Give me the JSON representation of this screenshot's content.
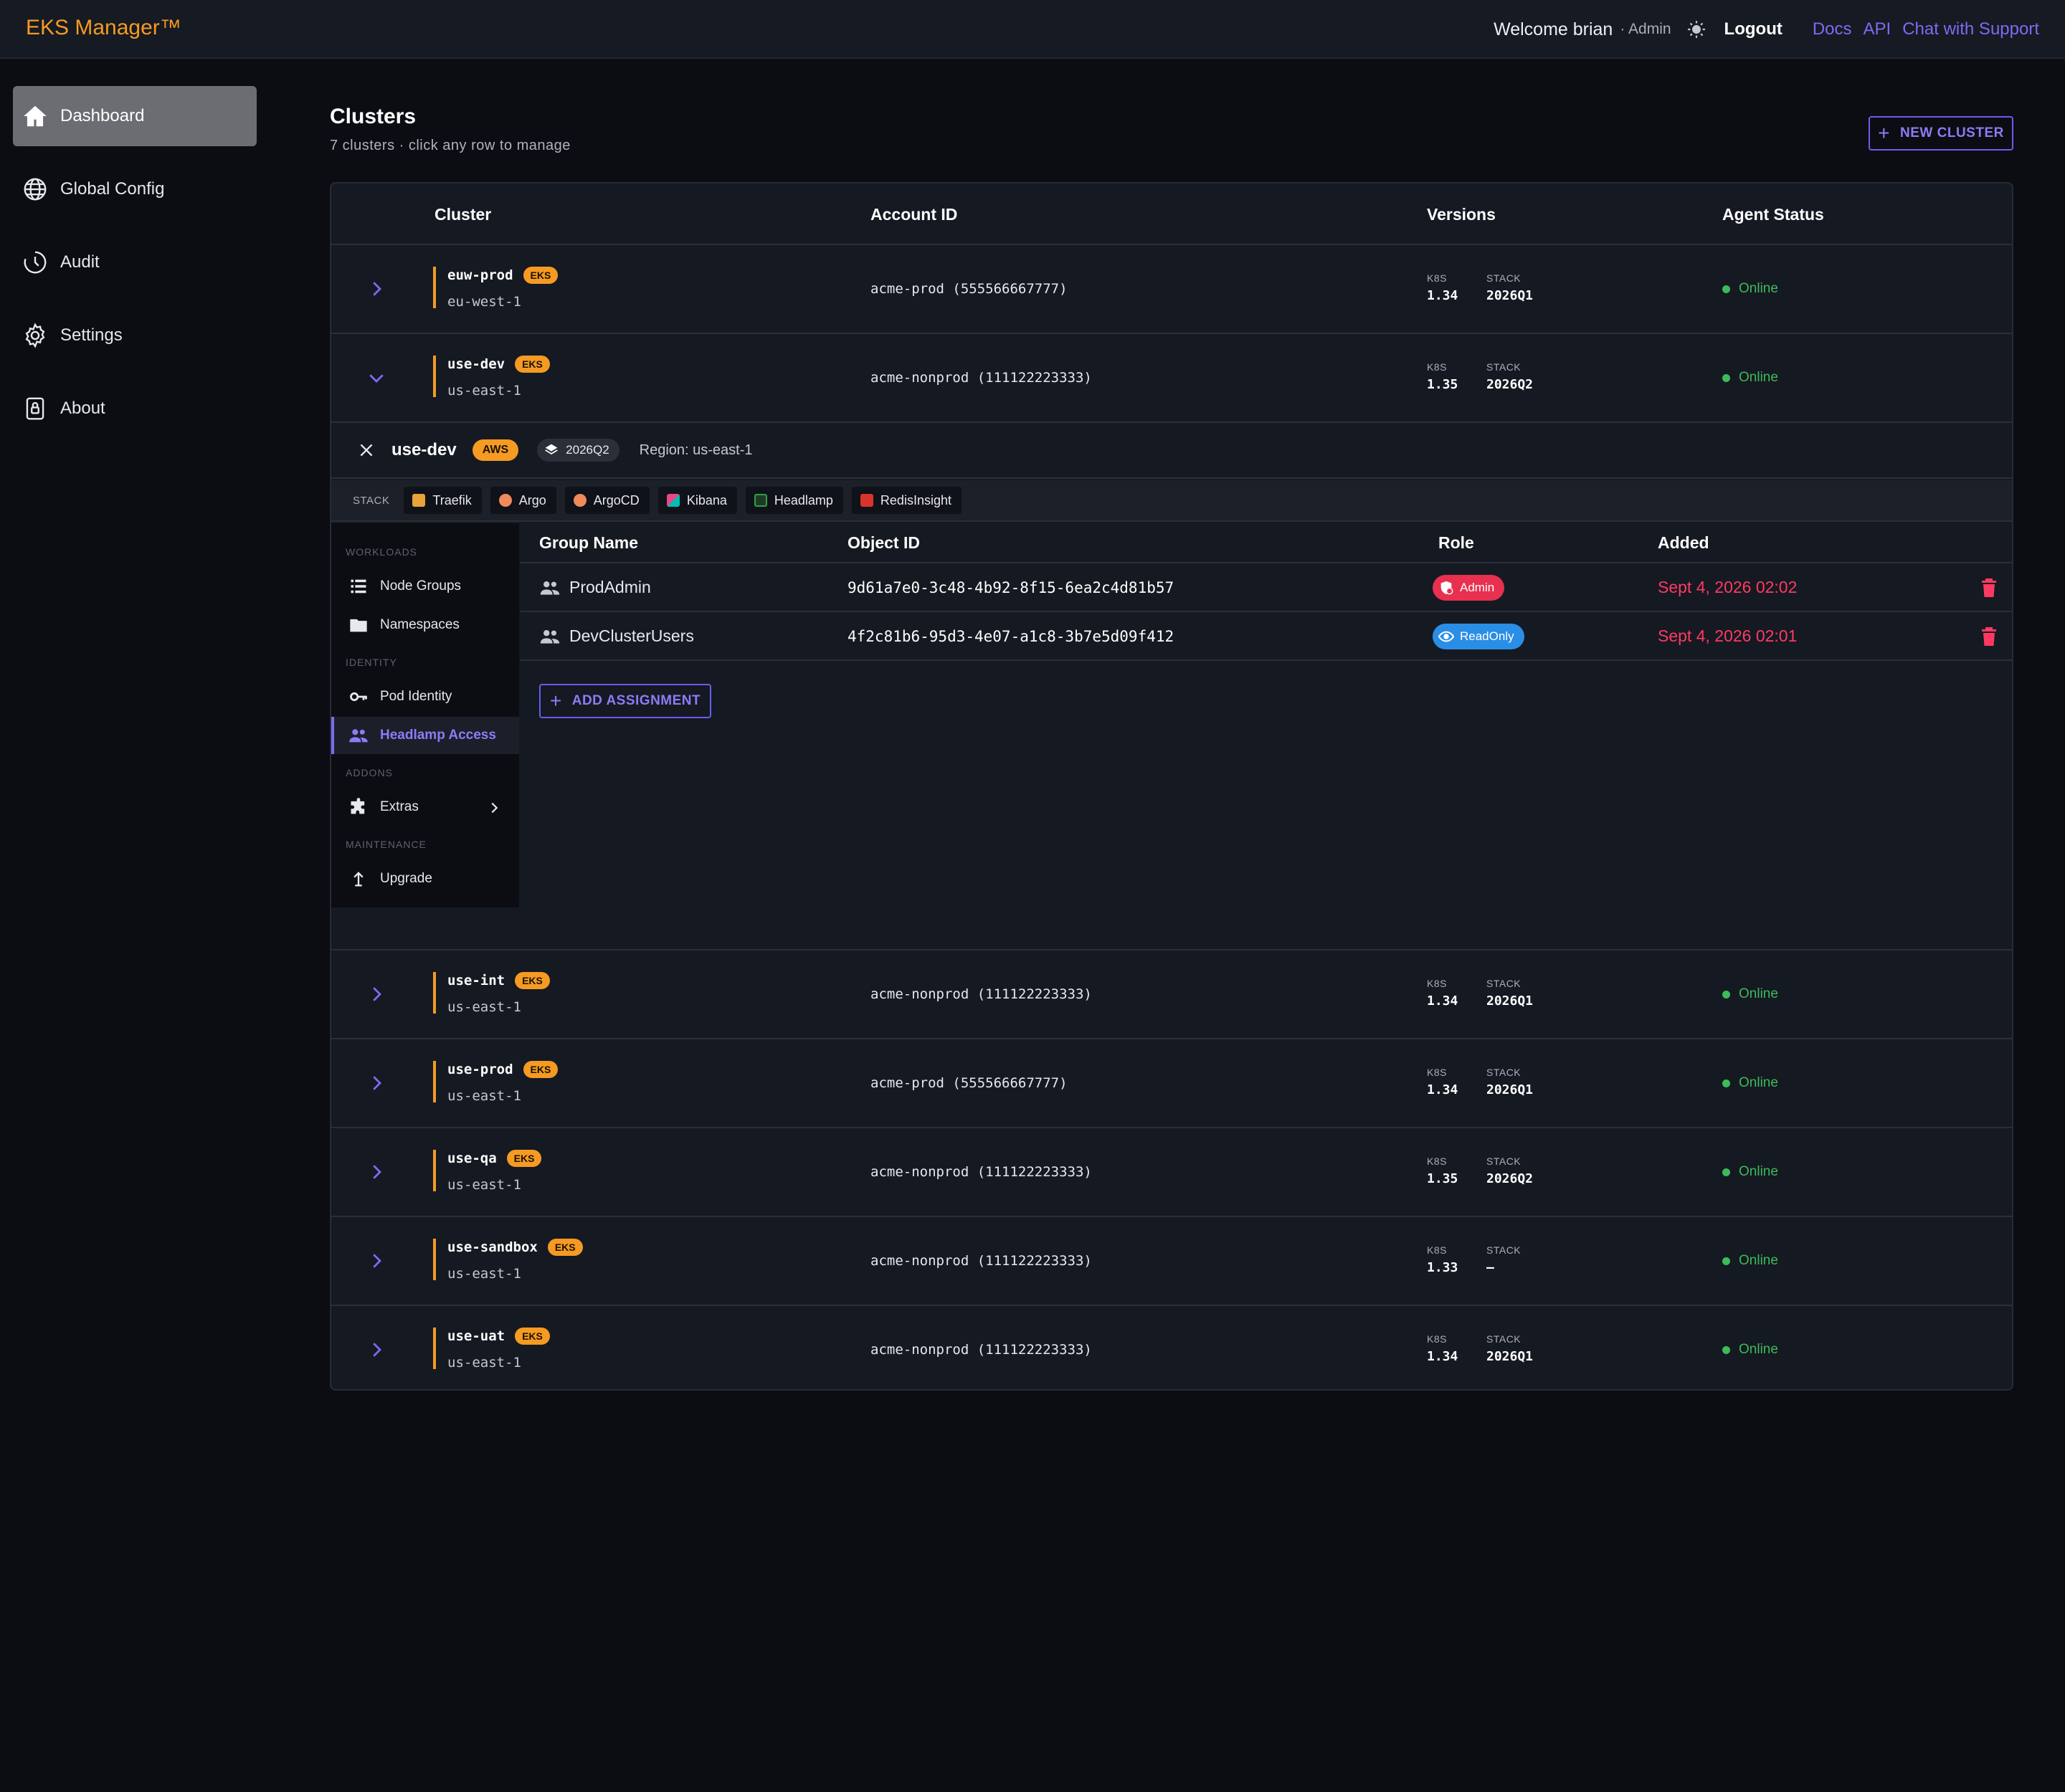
{
  "header": {
    "brand": "EKS Manager™",
    "welcome": "Welcome brian",
    "role": "· Admin",
    "logout": "Logout",
    "links": [
      "Docs",
      "API",
      "Chat with Support"
    ],
    "theme_icon": "sun-icon"
  },
  "sidebar": {
    "items": [
      {
        "label": "Dashboard",
        "icon": "home-icon",
        "active": true
      },
      {
        "label": "Global Config",
        "icon": "globe-icon"
      },
      {
        "label": "Audit",
        "icon": "clock-icon"
      },
      {
        "label": "Settings",
        "icon": "gear-icon"
      },
      {
        "label": "About",
        "icon": "lock-icon"
      }
    ]
  },
  "page": {
    "title": "Clusters",
    "subtitle": "7 clusters · click any row to manage",
    "new_cluster": "NEW CLUSTER"
  },
  "table": {
    "headers": [
      "Cluster",
      "Account ID",
      "Versions",
      "Agent Status"
    ],
    "version_labels": {
      "k8s": "K8S",
      "stack": "STACK"
    },
    "rows": [
      {
        "name": "euw-prod",
        "badge": "EKS",
        "region": "eu-west-1",
        "account": "acme-prod (555566667777)",
        "k8s": "1.34",
        "stack": "2026Q1",
        "status": "Online"
      },
      {
        "name": "use-dev",
        "badge": "EKS",
        "region": "us-east-1",
        "account": "acme-nonprod (111122223333)",
        "k8s": "1.35",
        "stack": "2026Q2",
        "status": "Online"
      },
      {
        "name": "use-int",
        "badge": "EKS",
        "region": "us-east-1",
        "account": "acme-nonprod (111122223333)",
        "k8s": "1.34",
        "stack": "2026Q1",
        "status": "Online"
      },
      {
        "name": "use-prod",
        "badge": "EKS",
        "region": "us-east-1",
        "account": "acme-prod (555566667777)",
        "k8s": "1.34",
        "stack": "2026Q1",
        "status": "Online"
      },
      {
        "name": "use-qa",
        "badge": "EKS",
        "region": "us-east-1",
        "account": "acme-nonprod (111122223333)",
        "k8s": "1.35",
        "stack": "2026Q2",
        "status": "Online"
      },
      {
        "name": "use-sandbox",
        "badge": "EKS",
        "region": "us-east-1",
        "account": "acme-nonprod (111122223333)",
        "k8s": "1.33",
        "stack": "–",
        "status": "Online"
      },
      {
        "name": "use-uat",
        "badge": "EKS",
        "region": "us-east-1",
        "account": "acme-nonprod (111122223333)",
        "k8s": "1.34",
        "stack": "2026Q1",
        "status": "Online"
      }
    ]
  },
  "panel": {
    "cluster": "use-dev",
    "provider": "AWS",
    "stack_version": "2026Q2",
    "region": "Region: us-east-1",
    "stack_label": "STACK",
    "stack_chips": [
      {
        "label": "Traefik",
        "color": "#e8a33a"
      },
      {
        "label": "Argo",
        "color": "#f08a5d"
      },
      {
        "label": "ArgoCD",
        "color": "#f08a5d"
      },
      {
        "label": "Kibana",
        "color": "#e8478b"
      },
      {
        "label": "Headlamp",
        "color": "#2ea04a"
      },
      {
        "label": "RedisInsight",
        "color": "#d8342c"
      }
    ],
    "side_sections": {
      "workloads": "WORKLOADS",
      "identity": "IDENTITY",
      "addons": "ADDONS",
      "maintenance": "MAINTENANCE"
    },
    "side_items": {
      "node_groups": "Node Groups",
      "namespaces": "Namespaces",
      "pod_identity": "Pod Identity",
      "headlamp_access": "Headlamp Access",
      "extras": "Extras",
      "upgrade": "Upgrade"
    },
    "grid_headers": [
      "Group Name",
      "Object ID",
      "Role",
      "Added"
    ],
    "assignments": [
      {
        "group": "ProdAdmin",
        "object_id": "9d61a7e0-3c48-4b92-8f15-6ea2c4d81b57",
        "role": "Admin",
        "role_color": "#e8304f",
        "added": "Sept 4, 2026 02:02"
      },
      {
        "group": "DevClusterUsers",
        "object_id": "4f2c81b6-95d3-4e07-a1c8-3b7e5d09f412",
        "role": "ReadOnly",
        "role_color": "#2a8ee6",
        "added": "Sept 4, 2026 02:01"
      }
    ],
    "add_assignment": "ADD ASSIGNMENT"
  }
}
